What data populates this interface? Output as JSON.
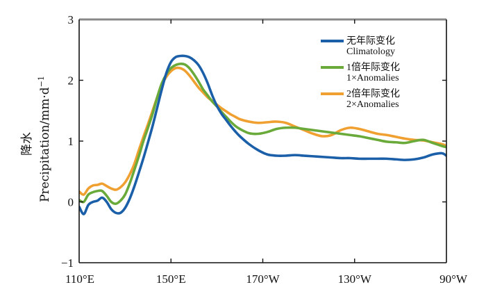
{
  "chart_data": {
    "type": "line",
    "title": "",
    "ylabel_cn": "降水",
    "ylabel": "Precipitation/mm·d",
    "ylabel_sup": "−1",
    "xlim": [
      110,
      270
    ],
    "ylim": [
      -1,
      3
    ],
    "yticks": [
      {
        "value": 3,
        "label": "3"
      },
      {
        "value": 2,
        "label": "2"
      },
      {
        "value": 1,
        "label": "1"
      },
      {
        "value": 0,
        "label": "0"
      },
      {
        "value": -1,
        "label": "−1"
      }
    ],
    "xticks": [
      {
        "value": 110,
        "label": "110°E"
      },
      {
        "value": 150,
        "label": "150°E"
      },
      {
        "value": 190,
        "label": "170°W"
      },
      {
        "value": 230,
        "label": "130°W"
      },
      {
        "value": 270,
        "label": "90°W"
      }
    ],
    "legend_position": "top-right",
    "series": [
      {
        "name": "无年际变化",
        "name_en": "Climatology",
        "color": "#1a5fa8",
        "x": [
          110,
          112,
          114,
          116,
          118,
          120,
          122,
          124,
          126,
          128,
          130,
          132,
          134,
          136,
          138,
          140,
          142,
          144,
          146,
          148,
          150,
          152,
          154,
          156,
          158,
          160,
          162,
          164,
          166,
          168,
          170,
          172,
          174,
          176,
          178,
          180,
          184,
          188,
          192,
          196,
          200,
          204,
          208,
          212,
          216,
          220,
          224,
          228,
          232,
          236,
          240,
          244,
          248,
          252,
          256,
          260,
          264,
          268,
          270
        ],
        "values": [
          -0.08,
          -0.2,
          -0.05,
          0.0,
          0.02,
          0.07,
          0.0,
          -0.12,
          -0.18,
          -0.18,
          -0.1,
          0.05,
          0.25,
          0.48,
          0.72,
          0.98,
          1.25,
          1.55,
          1.85,
          2.12,
          2.3,
          2.38,
          2.4,
          2.4,
          2.38,
          2.33,
          2.25,
          2.12,
          1.95,
          1.75,
          1.58,
          1.45,
          1.35,
          1.25,
          1.16,
          1.08,
          0.95,
          0.85,
          0.78,
          0.76,
          0.76,
          0.77,
          0.76,
          0.75,
          0.74,
          0.73,
          0.72,
          0.72,
          0.71,
          0.71,
          0.71,
          0.71,
          0.7,
          0.69,
          0.7,
          0.73,
          0.78,
          0.8,
          0.76
        ]
      },
      {
        "name": "1倍年际变化",
        "name_en": "1×Anomalies",
        "color": "#6aaa3a",
        "x": [
          110,
          112,
          114,
          116,
          118,
          120,
          122,
          124,
          126,
          128,
          130,
          132,
          134,
          136,
          138,
          140,
          142,
          144,
          146,
          148,
          150,
          152,
          154,
          156,
          158,
          160,
          162,
          164,
          166,
          168,
          170,
          172,
          174,
          176,
          178,
          180,
          184,
          188,
          192,
          196,
          200,
          204,
          208,
          212,
          216,
          220,
          224,
          228,
          232,
          236,
          240,
          244,
          248,
          252,
          256,
          260,
          264,
          268,
          270
        ],
        "values": [
          0.03,
          0.0,
          0.12,
          0.16,
          0.18,
          0.18,
          0.1,
          0.0,
          -0.03,
          0.02,
          0.12,
          0.3,
          0.52,
          0.75,
          1.0,
          1.22,
          1.45,
          1.72,
          1.95,
          2.1,
          2.2,
          2.25,
          2.27,
          2.26,
          2.2,
          2.1,
          1.98,
          1.85,
          1.75,
          1.65,
          1.57,
          1.48,
          1.4,
          1.32,
          1.25,
          1.2,
          1.13,
          1.12,
          1.15,
          1.2,
          1.22,
          1.22,
          1.2,
          1.18,
          1.16,
          1.14,
          1.12,
          1.1,
          1.08,
          1.05,
          1.02,
          0.99,
          0.98,
          0.97,
          1.0,
          1.02,
          0.97,
          0.92,
          0.9
        ]
      },
      {
        "name": "2倍年际变化",
        "name_en": "2×Anomalies",
        "color": "#f0a030",
        "x": [
          110,
          112,
          114,
          116,
          118,
          120,
          122,
          124,
          126,
          128,
          130,
          132,
          134,
          136,
          138,
          140,
          142,
          144,
          146,
          148,
          150,
          152,
          154,
          156,
          158,
          160,
          162,
          164,
          166,
          168,
          170,
          172,
          174,
          176,
          178,
          180,
          184,
          188,
          192,
          196,
          200,
          204,
          208,
          212,
          216,
          220,
          224,
          228,
          232,
          236,
          240,
          244,
          248,
          252,
          256,
          260,
          264,
          268,
          270
        ],
        "values": [
          0.17,
          0.12,
          0.22,
          0.27,
          0.28,
          0.3,
          0.26,
          0.22,
          0.2,
          0.24,
          0.32,
          0.45,
          0.62,
          0.85,
          1.07,
          1.28,
          1.5,
          1.72,
          1.92,
          2.06,
          2.15,
          2.2,
          2.2,
          2.16,
          2.08,
          1.98,
          1.88,
          1.8,
          1.72,
          1.66,
          1.6,
          1.54,
          1.49,
          1.44,
          1.4,
          1.36,
          1.32,
          1.3,
          1.31,
          1.32,
          1.3,
          1.24,
          1.18,
          1.12,
          1.08,
          1.1,
          1.18,
          1.22,
          1.2,
          1.16,
          1.12,
          1.1,
          1.07,
          1.04,
          1.02,
          1.01,
          0.98,
          0.95,
          0.92
        ]
      }
    ]
  }
}
